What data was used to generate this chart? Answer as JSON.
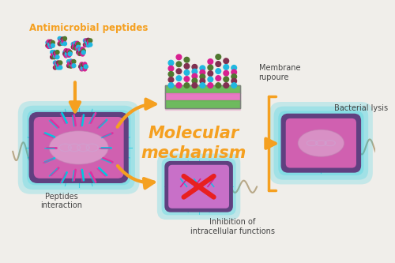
{
  "bg_color": "#f0eeea",
  "title": "Molecular\nmechanism",
  "title_color": "#f5a020",
  "title_fontsize": 15,
  "label_antimicrobial": "Antimicrobial peptides",
  "label_antimicrobial_color": "#f5a020",
  "label_peptides": "Peptides\ninteraction",
  "label_membrane": "Membrane\nrupoure",
  "label_bacterial": "Bacterial lysis",
  "label_inhibition": "Inhibition of\nintracellular functions",
  "label_color": "#444444",
  "arrow_color": "#f5a020",
  "bacteria_outer": "#00c8e0",
  "bacteria_body": "#d060b0",
  "bacteria_body2": "#c870c8",
  "bacteria_dark": "#604080",
  "bacteria_nuc": "#e8d8f0",
  "membrane_pink": "#e870c0",
  "membrane_green": "#60b850",
  "membrane_dark": "#404040",
  "red_x": "#e82020",
  "pep_cyan": "#20b8e0",
  "pep_pink": "#d82090",
  "pep_green": "#507830",
  "pep_dark": "#803050",
  "flagella_color": "#b8a888",
  "spike_cyan": "#00c8e0",
  "spike_pink": "#e030a0"
}
